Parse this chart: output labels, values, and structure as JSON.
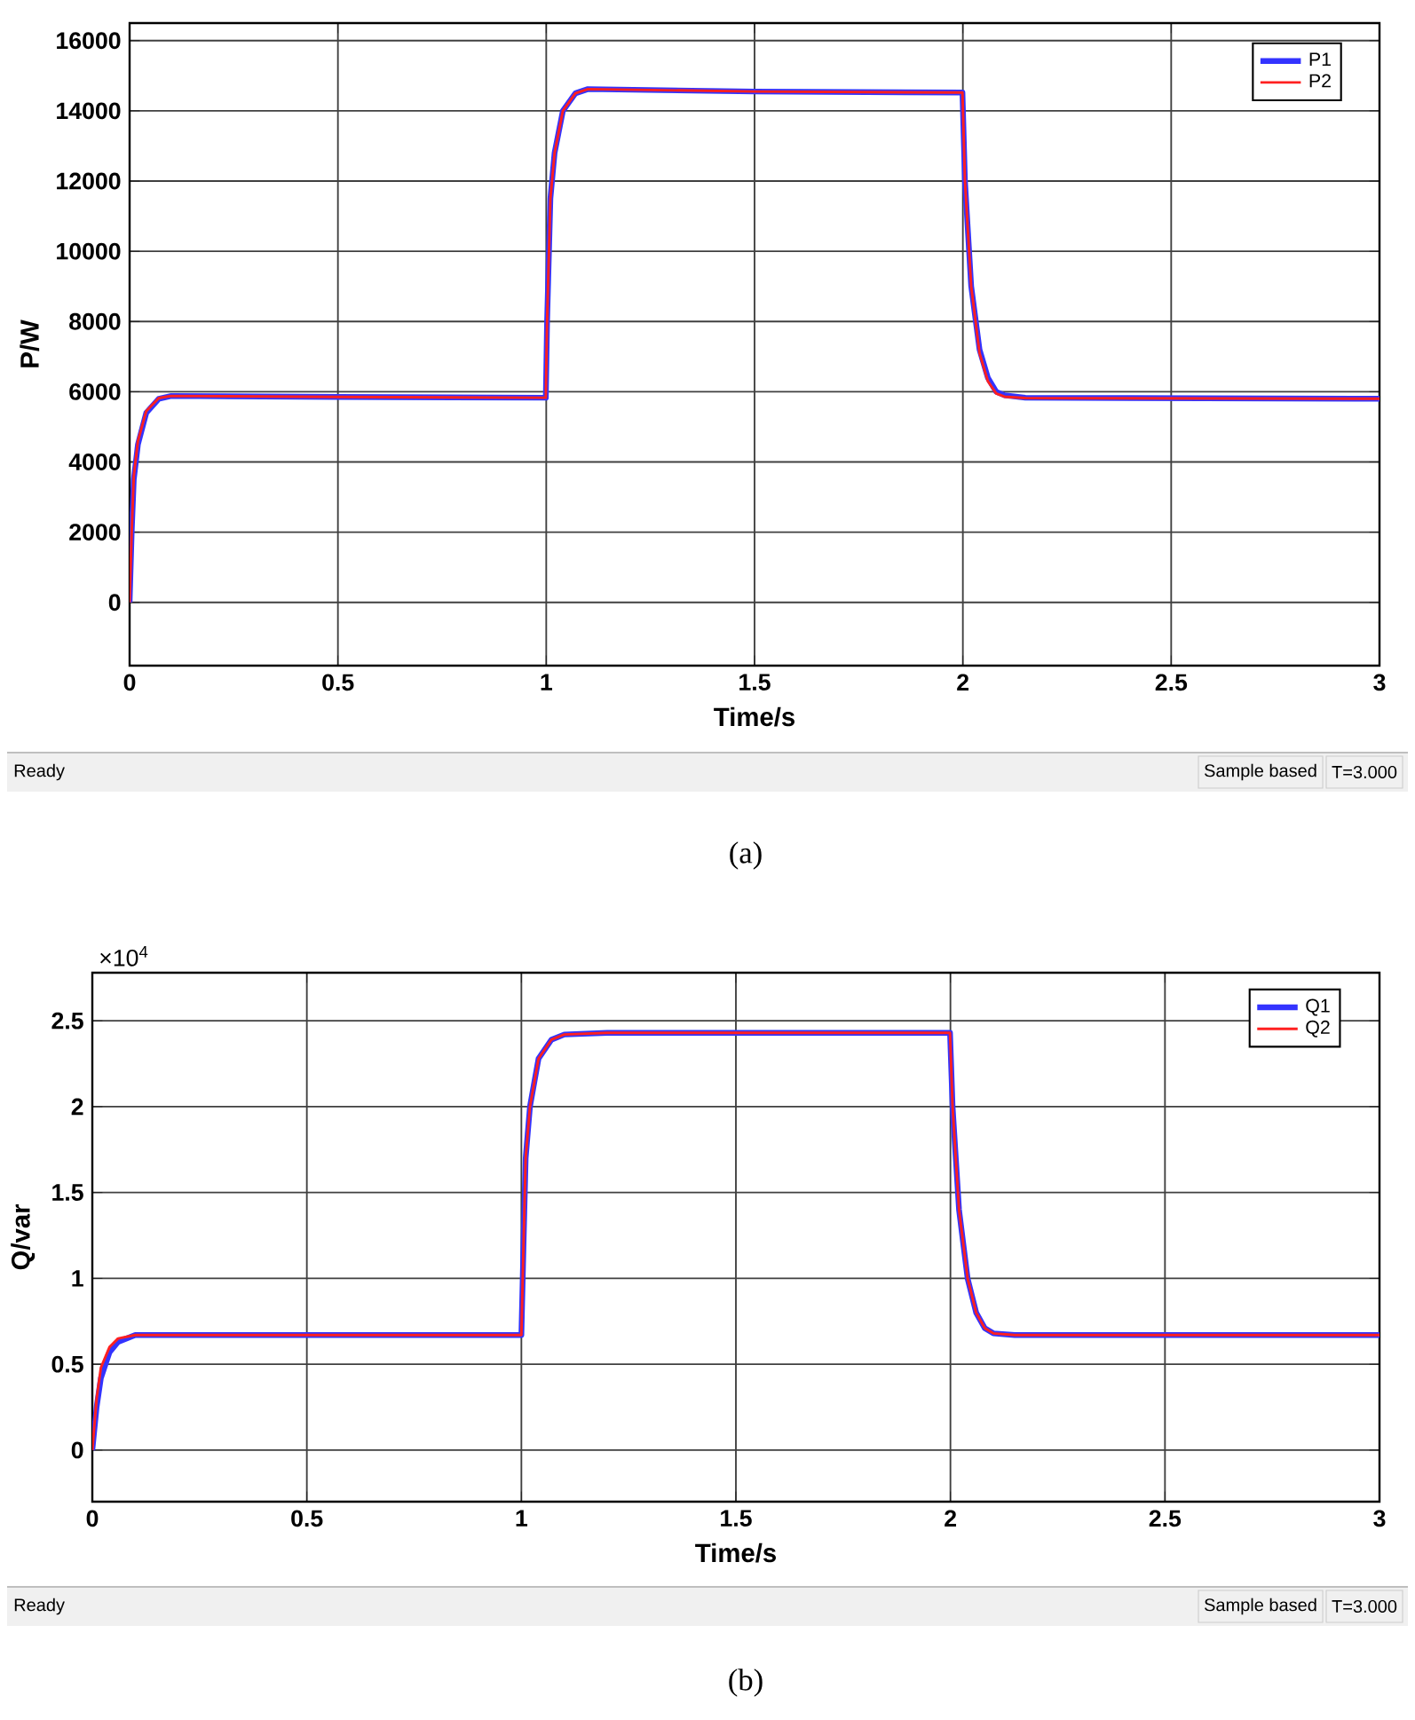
{
  "chart_data": [
    {
      "type": "line",
      "xlabel": "Time/s",
      "ylabel": "P/W",
      "xlim": [
        0,
        3
      ],
      "ylim": [
        -1800,
        16500
      ],
      "xticks": [
        0,
        0.5,
        1,
        1.5,
        2,
        2.5,
        3
      ],
      "yticks": [
        0,
        2000,
        4000,
        6000,
        8000,
        10000,
        12000,
        14000,
        16000
      ],
      "grid": true,
      "legend": "top right",
      "series": [
        {
          "name": "P1",
          "color": "#3333ff",
          "x": [
            0,
            0.005,
            0.01,
            0.02,
            0.04,
            0.07,
            0.1,
            0.5,
            0.999,
            1.002,
            1.01,
            1.02,
            1.04,
            1.07,
            1.1,
            1.5,
            1.999,
            2.005,
            2.02,
            2.04,
            2.06,
            2.08,
            2.1,
            2.15,
            3
          ],
          "values": [
            0,
            2000,
            3500,
            4500,
            5400,
            5800,
            5880,
            5850,
            5830,
            8000,
            11500,
            12800,
            14000,
            14500,
            14620,
            14550,
            14520,
            12000,
            9000,
            7200,
            6400,
            6000,
            5900,
            5830,
            5800
          ]
        },
        {
          "name": "P2",
          "color": "#ff2020",
          "x": [
            0,
            0.005,
            0.01,
            0.02,
            0.04,
            0.07,
            0.1,
            0.5,
            0.999,
            1.002,
            1.01,
            1.02,
            1.04,
            1.07,
            1.1,
            1.5,
            1.999,
            2.005,
            2.02,
            2.04,
            2.06,
            2.08,
            2.1,
            2.15,
            3
          ],
          "values": [
            0,
            2000,
            3600,
            4600,
            5450,
            5820,
            5880,
            5850,
            5830,
            8000,
            11500,
            12800,
            14000,
            14500,
            14620,
            14550,
            14520,
            12000,
            9000,
            7100,
            6300,
            5950,
            5860,
            5820,
            5800
          ]
        }
      ],
      "annotations": [
        "Ready",
        "Sample based",
        "T=3.000",
        "(a)"
      ]
    },
    {
      "type": "line",
      "xlabel": "Time/s",
      "ylabel": "Q/var",
      "xlim": [
        0,
        3
      ],
      "ylim": [
        -0.3,
        2.78
      ],
      "xticks": [
        0,
        0.5,
        1,
        1.5,
        2,
        2.5,
        3
      ],
      "yticks": [
        0,
        0.5,
        1,
        1.5,
        2,
        2.5
      ],
      "grid": true,
      "legend": "top right",
      "series": [
        {
          "name": "Q1",
          "color": "#3333ff",
          "x": [
            0,
            0.01,
            0.02,
            0.04,
            0.06,
            0.1,
            1.0,
            1.005,
            1.01,
            1.02,
            1.04,
            1.07,
            1.1,
            1.2,
            1.999,
            2.005,
            2.02,
            2.04,
            2.06,
            2.08,
            2.1,
            2.15,
            3
          ],
          "values": [
            0,
            0.25,
            0.42,
            0.57,
            0.63,
            0.67,
            0.67,
            1.2,
            1.7,
            2.0,
            2.28,
            2.39,
            2.42,
            2.43,
            2.43,
            2.0,
            1.4,
            1.0,
            0.8,
            0.71,
            0.68,
            0.67,
            0.67
          ]
        },
        {
          "name": "Q2",
          "color": "#ff2020",
          "x": [
            0,
            0.01,
            0.02,
            0.04,
            0.06,
            0.1,
            1.0,
            1.005,
            1.01,
            1.02,
            1.04,
            1.07,
            1.1,
            1.2,
            1.999,
            2.005,
            2.02,
            2.04,
            2.06,
            2.08,
            2.1,
            2.15,
            3
          ],
          "values": [
            0,
            0.3,
            0.48,
            0.6,
            0.65,
            0.67,
            0.67,
            1.2,
            1.7,
            2.0,
            2.28,
            2.39,
            2.42,
            2.43,
            2.43,
            2.0,
            1.4,
            1.0,
            0.8,
            0.71,
            0.68,
            0.67,
            0.67
          ]
        }
      ],
      "annotations": [
        "Ready",
        "Sample based",
        "T=3.000",
        "(b)",
        "×10$^{4}$"
      ]
    }
  ]
}
